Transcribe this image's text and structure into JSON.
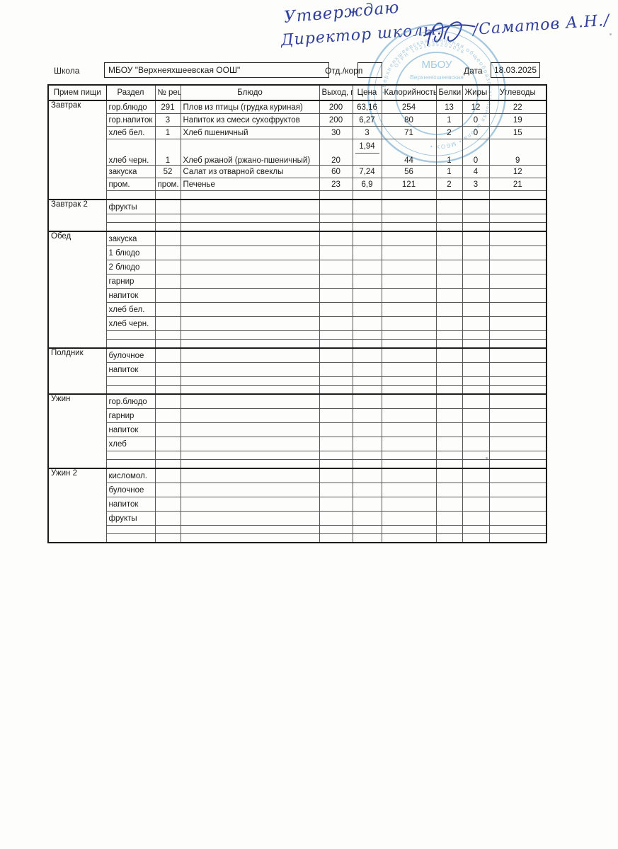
{
  "approval": {
    "line1": "Утверждаю",
    "line2": "Директор школы:",
    "line2_name": "/Саматов А.Н./"
  },
  "stamp": {
    "color": "#5e9ec7",
    "center": "МБОУ",
    "center_sub": "Верхнеяхшеевская",
    "ring_ogrn": "ОГРН 1031035202026",
    "ring_outer": "• Верхнеяхшеевская основная общеобразовательная школа • МБОУ •"
  },
  "form": {
    "school_label": "Школа",
    "school_value": "МБОУ \"Верхнеяхшеевская ООШ\"",
    "dept_label": "Отд./корп",
    "dept_value": "",
    "date_label": "Дата",
    "date_value": "18.03.2025"
  },
  "table": {
    "headers": [
      "Прием пищи",
      "Раздел",
      "№ рец.",
      "Блюдо",
      "Выход, г",
      "Цена",
      "Калорийность",
      "Белки",
      "Жиры",
      "Углеводы"
    ],
    "sections": [
      {
        "meal": "Завтрак",
        "rows": [
          {
            "razdel": "гор.блюдо",
            "rec": "291",
            "dish": "Плов из птицы (грудка куриная)",
            "out": "200",
            "price": "63,16",
            "cal": "254",
            "prot": "13",
            "fat": "12",
            "carb": "22"
          },
          {
            "razdel": "гор.напиток",
            "rec": "3",
            "dish": "Напиток из смеси сухофруктов",
            "out": "200",
            "price": "6,27",
            "cal": "80",
            "prot": "1",
            "fat": "0",
            "carb": "19"
          },
          {
            "razdel": "хлеб бел.",
            "rec": "1",
            "dish": "Хлеб пшеничный",
            "out": "30",
            "price": "3",
            "cal": "71",
            "prot": "2",
            "fat": "0",
            "carb": "15"
          },
          {
            "razdel": "хлеб черн.",
            "rec": "1",
            "dish": "Хлеб ржаной (ржано-пшеничный)",
            "out": "20",
            "price": "1,94",
            "cal": "44",
            "prot": "1",
            "fat": "0",
            "carb": "9",
            "tall": true
          },
          {
            "razdel": "закуска",
            "rec": "52",
            "dish": "Салат из отварной свеклы",
            "out": "60",
            "price": "7,24",
            "cal": "56",
            "prot": "1",
            "fat": "4",
            "carb": "12"
          },
          {
            "razdel": "пром.",
            "rec": "пром.",
            "dish": "Печенье",
            "out": "23",
            "price": "6,9",
            "cal": "121",
            "prot": "2",
            "fat": "3",
            "carb": "21"
          },
          {
            "empty": true
          }
        ]
      },
      {
        "meal": "Завтрак 2",
        "rows": [
          {
            "razdel": "фрукты"
          },
          {
            "empty": true
          },
          {
            "empty": true
          }
        ]
      },
      {
        "meal": "Обед",
        "rows": [
          {
            "razdel": "закуска"
          },
          {
            "razdel": "1 блюдо"
          },
          {
            "razdel": "2 блюдо"
          },
          {
            "razdel": "гарнир"
          },
          {
            "razdel": "напиток"
          },
          {
            "razdel": "хлеб бел."
          },
          {
            "razdel": "хлеб черн."
          },
          {
            "empty": true
          },
          {
            "empty": true
          }
        ]
      },
      {
        "meal": "Полдник",
        "rows": [
          {
            "razdel": "булочное"
          },
          {
            "razdel": "напиток"
          },
          {
            "empty": true
          },
          {
            "empty": true
          }
        ]
      },
      {
        "meal": "Ужин",
        "rows": [
          {
            "razdel": "гор.блюдо"
          },
          {
            "razdel": "гарнир"
          },
          {
            "razdel": "напиток"
          },
          {
            "razdel": "хлеб"
          },
          {
            "empty": true
          },
          {
            "empty": true
          }
        ]
      },
      {
        "meal": "Ужин 2",
        "rows": [
          {
            "razdel": "кисломол."
          },
          {
            "razdel": "булочное"
          },
          {
            "razdel": "напиток"
          },
          {
            "razdel": "фрукты"
          },
          {
            "empty": true
          },
          {
            "empty": true
          }
        ]
      }
    ]
  }
}
